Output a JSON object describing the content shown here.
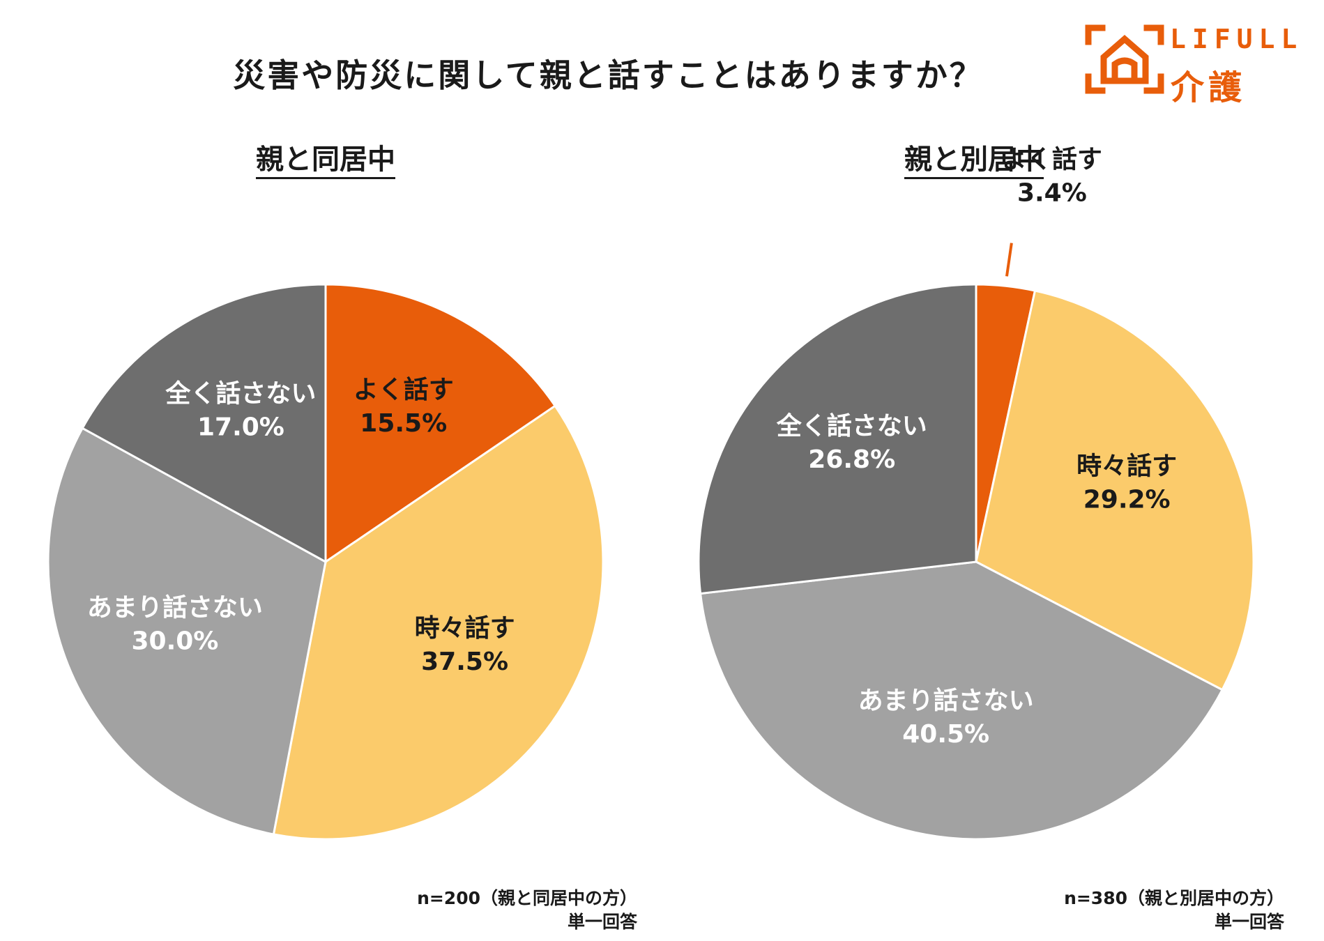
{
  "title": "災害や防災に関して親と話すことはありますか？",
  "logo": {
    "text_en": "LIFULL",
    "text_ja": "介護",
    "color": "#e85d0a"
  },
  "colors": {
    "often": "#e85d0a",
    "sometimes": "#fbcb6b",
    "rarely": "#a2a2a2",
    "never": "#6e6e6e"
  },
  "chart_data": [
    {
      "type": "pie",
      "title": "親と同居中",
      "slices": [
        {
          "label": "よく話す",
          "value": 15.5,
          "display": "15.5%",
          "color": "#e85d0a",
          "text_color": "#1a1a1a"
        },
        {
          "label": "時々話す",
          "value": 37.5,
          "display": "37.5%",
          "color": "#fbcb6b",
          "text_color": "#1a1a1a"
        },
        {
          "label": "あまり話さない",
          "value": 30.0,
          "display": "30.0%",
          "color": "#a2a2a2",
          "text_color": "#ffffff"
        },
        {
          "label": "全く話さない",
          "value": 17.0,
          "display": "17.0%",
          "color": "#6e6e6e",
          "text_color": "#ffffff"
        }
      ],
      "note": {
        "sample": "n=200（親と同居中の方）",
        "answer_type": "単一回答"
      }
    },
    {
      "type": "pie",
      "title": "親と別居中",
      "slices": [
        {
          "label": "よく話す",
          "value": 3.4,
          "display": "3.4%",
          "color": "#e85d0a",
          "text_color": "#1a1a1a",
          "external_label": true
        },
        {
          "label": "時々話す",
          "value": 29.2,
          "display": "29.2%",
          "color": "#fbcb6b",
          "text_color": "#1a1a1a"
        },
        {
          "label": "あまり話さない",
          "value": 40.5,
          "display": "40.5%",
          "color": "#a2a2a2",
          "text_color": "#ffffff"
        },
        {
          "label": "全く話さない",
          "value": 26.8,
          "display": "26.8%",
          "color": "#6e6e6e",
          "text_color": "#ffffff"
        }
      ],
      "note": {
        "sample": "n=380（親と別居中の方）",
        "answer_type": "単一回答"
      }
    }
  ]
}
